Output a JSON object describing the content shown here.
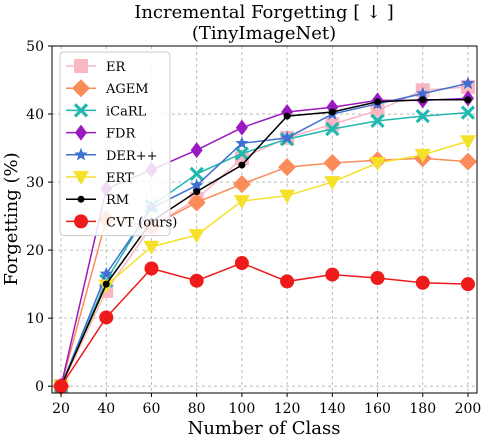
{
  "chart_data": {
    "type": "line",
    "title": "Incremental Forgetting [ ↓ ]",
    "subtitle": "(TinyImageNet)",
    "xlabel": "Number of Class",
    "ylabel": "Forgetting (%)",
    "x": [
      20,
      40,
      60,
      80,
      100,
      120,
      140,
      160,
      180,
      200
    ],
    "xticks": [
      "20",
      "40",
      "60",
      "80",
      "100",
      "120",
      "140",
      "160",
      "180",
      "200"
    ],
    "yticks": [
      "0",
      "10",
      "20",
      "30",
      "40",
      "50"
    ],
    "xlim": [
      16,
      204
    ],
    "ylim": [
      -1,
      50
    ],
    "grid": true,
    "legend_position": "upper-left",
    "series": [
      {
        "name": "ER",
        "color": "#f9b7c3",
        "marker": "square",
        "values": [
          0,
          14,
          23.5,
          27.5,
          33.5,
          36.5,
          38.5,
          40.5,
          43.5,
          44
        ]
      },
      {
        "name": "AGEM",
        "color": "#fa8c5a",
        "marker": "diamond",
        "values": [
          0,
          24.5,
          23.5,
          27,
          29.7,
          32.2,
          32.8,
          33.2,
          33.5,
          33
        ]
      },
      {
        "name": "iCaRL",
        "color": "#21b8b0",
        "marker": "x",
        "values": [
          0,
          15.5,
          26.5,
          31.2,
          34.2,
          36.3,
          37.8,
          39,
          39.7,
          40.2
        ]
      },
      {
        "name": "FDR",
        "color": "#9b19c0",
        "marker": "thin_diamond",
        "values": [
          0,
          29,
          31.8,
          34.7,
          38,
          40.3,
          41,
          42,
          42,
          42.3
        ]
      },
      {
        "name": "DER++",
        "color": "#3e6fd1",
        "marker": "star",
        "values": [
          0,
          16.5,
          26.2,
          29.5,
          35.7,
          36.5,
          40,
          41.5,
          43,
          44.5
        ]
      },
      {
        "name": "ERT",
        "color": "#f5e02a",
        "marker": "triangle_down",
        "values": [
          0,
          14.8,
          20.5,
          22.2,
          27.2,
          28,
          30,
          32.8,
          34,
          36
        ]
      },
      {
        "name": "RM",
        "color": "#000000",
        "marker": "dot",
        "values": [
          0,
          15,
          24.2,
          28.6,
          32.5,
          39.7,
          40.3,
          41.8,
          42.1,
          42.1
        ]
      },
      {
        "name": "CVT (ours)",
        "color": "#ee1b1b",
        "marker": "circle",
        "values": [
          0,
          10.1,
          17.3,
          15.5,
          18.1,
          15.4,
          16.4,
          15.9,
          15.2,
          15
        ]
      }
    ]
  }
}
